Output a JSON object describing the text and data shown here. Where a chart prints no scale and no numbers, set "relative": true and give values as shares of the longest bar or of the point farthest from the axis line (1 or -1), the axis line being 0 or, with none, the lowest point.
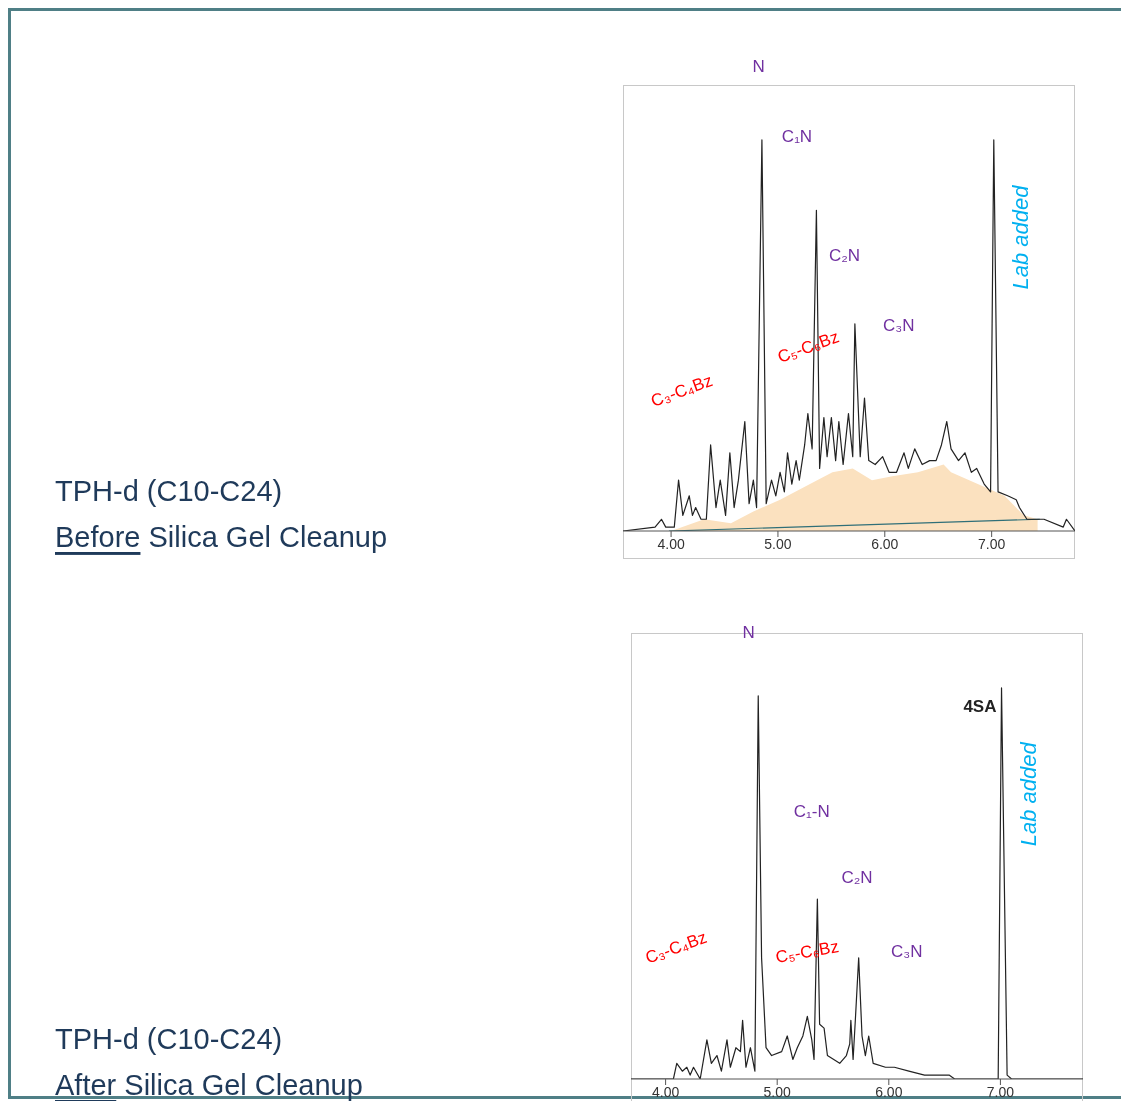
{
  "chart_data": [
    {
      "type": "line",
      "relative": true,
      "xlim": [
        3.55,
        7.78
      ],
      "xticks": [
        {
          "value": 4,
          "label": "4.00"
        },
        {
          "value": 5,
          "label": "5.00"
        },
        {
          "value": 6,
          "label": "6.00"
        },
        {
          "value": 7,
          "label": "7.00"
        }
      ],
      "series": [
        {
          "type": "area",
          "color": "#fbe1bf",
          "x": [
            4.0,
            4.31,
            4.56,
            4.77,
            5.02,
            5.3,
            5.51,
            5.7,
            5.88,
            6.07,
            6.31,
            6.55,
            6.62,
            6.87,
            7.12,
            7.3,
            7.43
          ],
          "values": [
            0,
            0.03,
            0.02,
            0.05,
            0.08,
            0.12,
            0.15,
            0.16,
            0.13,
            0.14,
            0.15,
            0.17,
            0.15,
            0.12,
            0.09,
            0.04,
            0.03
          ]
        },
        {
          "color": "#2f6f78",
          "x": [
            3.98,
            7.45
          ],
          "values": [
            0,
            0.03
          ]
        },
        {
          "color": "#222222",
          "x": [
            3.55,
            3.85,
            3.91,
            3.95,
            4.03,
            4.07,
            4.11,
            4.17,
            4.2,
            4.23,
            4.28,
            4.33,
            4.37,
            4.42,
            4.46,
            4.51,
            4.55,
            4.59,
            4.63,
            4.69,
            4.73,
            4.77,
            4.8,
            4.85,
            4.89,
            4.94,
            4.98,
            5.02,
            5.06,
            5.09,
            5.13,
            5.17,
            5.2,
            5.25,
            5.28,
            5.32,
            5.36,
            5.39,
            5.43,
            5.46,
            5.5,
            5.54,
            5.57,
            5.61,
            5.66,
            5.7,
            5.72,
            5.77,
            5.81,
            5.85,
            5.91,
            5.98,
            6.04,
            6.11,
            6.18,
            6.22,
            6.28,
            6.35,
            6.42,
            6.48,
            6.53,
            6.58,
            6.62,
            6.69,
            6.75,
            6.81,
            6.86,
            6.93,
            6.99,
            7.02,
            7.06,
            7.15,
            7.23,
            7.26,
            7.33,
            7.49,
            7.67,
            7.7,
            7.78
          ],
          "values": [
            0,
            0.01,
            0.03,
            0.01,
            0.01,
            0.13,
            0.04,
            0.09,
            0.04,
            0.06,
            0.03,
            0.03,
            0.22,
            0.06,
            0.13,
            0.04,
            0.2,
            0.06,
            0.13,
            0.28,
            0.07,
            0.13,
            0.06,
            1.0,
            0.07,
            0.13,
            0.09,
            0.15,
            0.1,
            0.2,
            0.12,
            0.18,
            0.13,
            0.22,
            0.3,
            0.21,
            0.82,
            0.16,
            0.29,
            0.19,
            0.29,
            0.18,
            0.28,
            0.17,
            0.3,
            0.19,
            0.53,
            0.19,
            0.34,
            0.18,
            0.17,
            0.19,
            0.15,
            0.15,
            0.2,
            0.16,
            0.21,
            0.17,
            0.18,
            0.18,
            0.22,
            0.28,
            0.21,
            0.18,
            0.2,
            0.15,
            0.16,
            0.12,
            0.1,
            1.0,
            0.1,
            0.09,
            0.08,
            0.06,
            0.03,
            0.03,
            0.01,
            0.03,
            0
          ]
        }
      ],
      "annotations": [
        "TPH-d (C10-C24)",
        "Before Silica Gel Cleanup",
        "N",
        "C₁N",
        "C₂N",
        "C₃N",
        "C₃-C₄Bz",
        "C₅-C₆Bz",
        "Lab added"
      ]
    },
    {
      "type": "line",
      "relative": true,
      "xlim": [
        3.69,
        7.74
      ],
      "xticks": [
        {
          "value": 4,
          "label": "4.00"
        },
        {
          "value": 5,
          "label": "5.00"
        },
        {
          "value": 6,
          "label": "6.00"
        },
        {
          "value": 7,
          "label": "7.00"
        }
      ],
      "series": [
        {
          "color": "#222222",
          "x": [
            3.69,
            3.96,
            4.07,
            4.1,
            4.15,
            4.19,
            4.22,
            4.25,
            4.31,
            4.37,
            4.41,
            4.46,
            4.5,
            4.55,
            4.58,
            4.63,
            4.67,
            4.69,
            4.72,
            4.76,
            4.8,
            4.83,
            4.86,
            4.9,
            4.95,
            5.04,
            5.09,
            5.14,
            5.18,
            5.23,
            5.27,
            5.31,
            5.33,
            5.36,
            5.38,
            5.42,
            5.45,
            5.56,
            5.62,
            5.65,
            5.66,
            5.68,
            5.7,
            5.73,
            5.76,
            5.79,
            5.82,
            5.86,
            5.97,
            6.05,
            6.18,
            6.32,
            6.54,
            6.59,
            6.98,
            7.01,
            7.06,
            7.1,
            7.74
          ],
          "values": [
            0,
            0,
            0,
            0.04,
            0.02,
            0.03,
            0.01,
            0.03,
            0,
            0.1,
            0.04,
            0.06,
            0.02,
            0.1,
            0.03,
            0.08,
            0.07,
            0.15,
            0.03,
            0.08,
            0.02,
            0.98,
            0.31,
            0.08,
            0.06,
            0.07,
            0.11,
            0.05,
            0.08,
            0.11,
            0.16,
            0.1,
            0.05,
            0.46,
            0.14,
            0.13,
            0.06,
            0.04,
            0.06,
            0.09,
            0.15,
            0.05,
            0.15,
            0.31,
            0.11,
            0.06,
            0.11,
            0.04,
            0.03,
            0.03,
            0.02,
            0.01,
            0.01,
            0,
            0,
            1.0,
            0.01,
            0,
            0
          ]
        }
      ],
      "annotations": [
        "TPH-d (C10-C24)",
        "After Silica Gel Cleanup",
        "N",
        "C₁-N",
        "C₂N",
        "C₃N",
        "C₃-C₄Bz",
        "C₅-C₆Bz",
        "4SA",
        "Lab added"
      ]
    }
  ]
}
